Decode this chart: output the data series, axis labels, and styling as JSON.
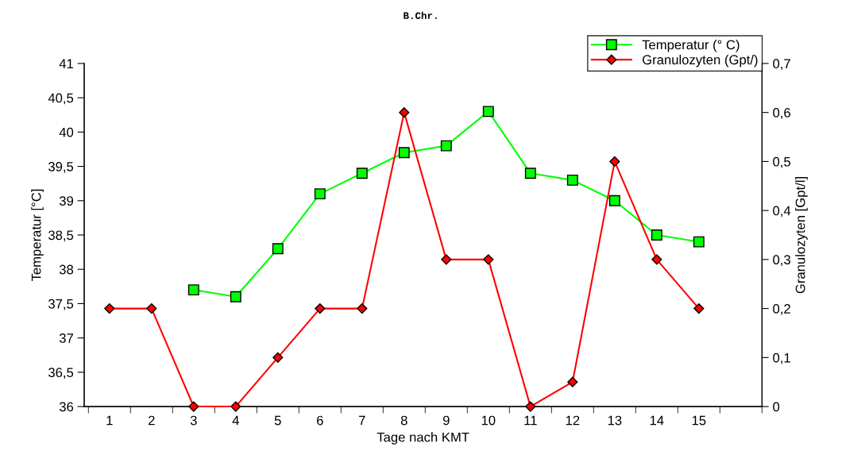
{
  "chart_data": {
    "type": "line",
    "title": "B.Chr.",
    "xlabel": "Tage nach KMT",
    "ylabel": "Temperatur [°C]",
    "y2label": "Granulozyten [Gpt/l]",
    "categories": [
      "1",
      "2",
      "3",
      "4",
      "5",
      "6",
      "7",
      "8",
      "9",
      "10",
      "11",
      "12",
      "13",
      "14",
      "15",
      null
    ],
    "series": [
      {
        "name": "Temperatur (° C)",
        "color": "#00ff00",
        "marker": "square",
        "values": [
          null,
          null,
          37.7,
          37.6,
          38.3,
          39.1,
          39.4,
          39.7,
          39.8,
          40.3,
          39.4,
          39.3,
          39.0,
          38.5,
          38.4,
          null
        ]
      },
      {
        "name": "Granulozyten (Gpt/)",
        "color": "#ff0000",
        "marker": "diamond",
        "axis": "y2",
        "values": [
          0.2,
          0.2,
          0,
          0,
          0.1,
          0.2,
          0.2,
          0.6,
          0.3,
          0.3,
          0,
          0.05,
          0.5,
          0.3,
          0.2,
          null
        ]
      }
    ],
    "ylim": [
      36,
      41
    ],
    "yticks": [
      36,
      {
        "value": 36.5,
        "label": "36,5"
      },
      37,
      {
        "value": 37.5,
        "label": "37,5"
      },
      38,
      {
        "value": 38.5,
        "label": "38,5"
      },
      39,
      {
        "value": 39.5,
        "label": "39,5"
      },
      40,
      {
        "value": 40.5,
        "label": "40,5"
      },
      41
    ],
    "y2lim": [
      0,
      0.7
    ],
    "y2ticks": [
      0,
      {
        "value": 0.1,
        "label": "0,1"
      },
      {
        "value": 0.2,
        "label": "0,2"
      },
      {
        "value": 0.3,
        "label": "0,3"
      },
      {
        "value": 0.4,
        "label": "0,4"
      },
      {
        "value": 0.5,
        "label": "0,5"
      },
      {
        "value": 0.6,
        "label": "0,6"
      },
      {
        "value": 0.7,
        "label": "0,7"
      }
    ],
    "grid": false,
    "legend": "top right",
    "line_style": "solid"
  }
}
